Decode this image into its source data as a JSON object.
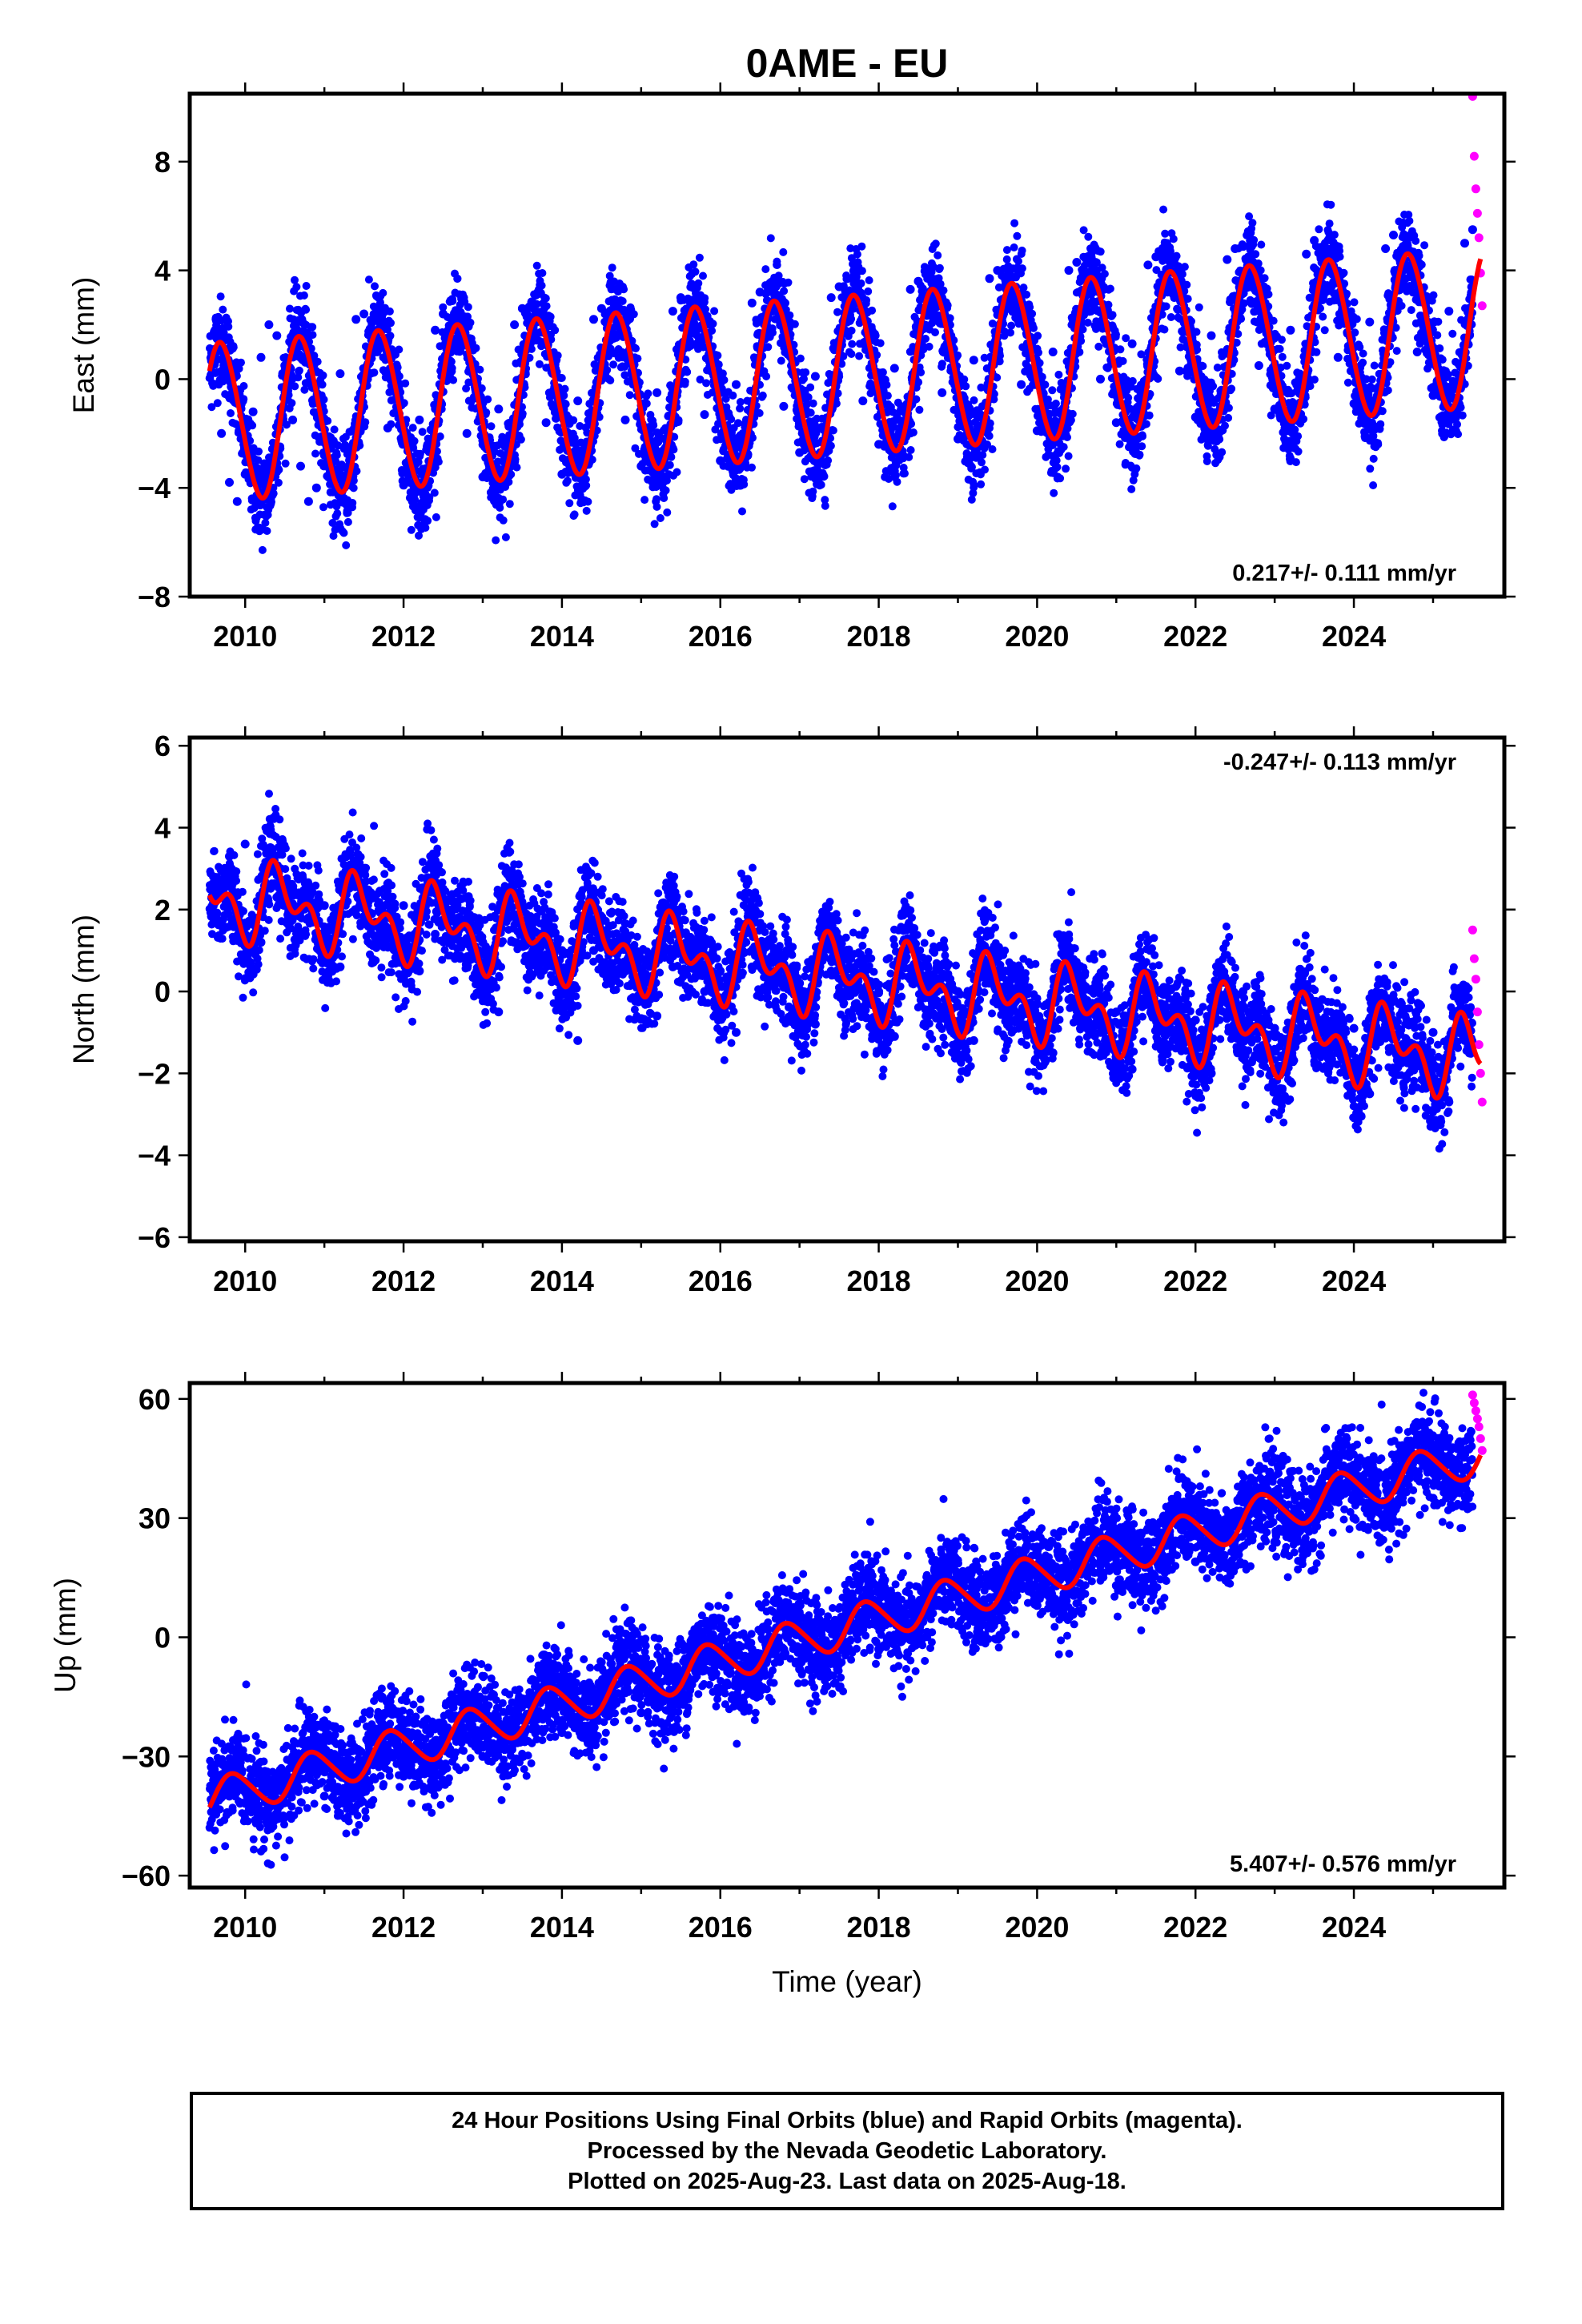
{
  "title": "0AME - EU",
  "colors": {
    "final_orbits": "#0000ff",
    "rapid_orbits": "#ff00ff",
    "model_fit": "#ff0000"
  },
  "chart_data": [
    {
      "type": "scatter",
      "ylabel": "East (mm)",
      "xlabel": "",
      "rate_label": "0.217+/- 0.111 mm/yr",
      "xlim": [
        2009.3,
        2025.9
      ],
      "ylim": [
        -8,
        10.5
      ],
      "x_ticks": [
        2010,
        2012,
        2014,
        2016,
        2018,
        2020,
        2022,
        2024
      ],
      "x_tick_labels": [
        "2010",
        "2012",
        "2014",
        "2016",
        "2018",
        "2020",
        "2022",
        "2024"
      ],
      "y_ticks": [
        -8,
        -4,
        0,
        4,
        8
      ],
      "y_tick_labels": [
        "−8",
        "−4",
        "0",
        "4",
        "8"
      ],
      "series": [
        {
          "x": [
            2009.6,
            2009.7,
            2009.8,
            2009.9,
            2010.0,
            2010.1,
            2010.2,
            2010.3,
            2010.4,
            2010.5,
            2010.6,
            2010.7,
            2010.8,
            2010.9,
            2011.0,
            2011.2,
            2011.4,
            2011.5,
            2011.6,
            2011.8,
            2012.0,
            2012.2,
            2012.4,
            2012.5,
            2012.6,
            2012.8,
            2013.0,
            2013.2,
            2013.4,
            2013.5,
            2013.6,
            2013.8,
            2014.0,
            2014.2,
            2014.4,
            2014.5,
            2014.6,
            2014.8,
            2015.0,
            2015.2,
            2015.4,
            2015.5,
            2015.6,
            2015.8,
            2016.0,
            2016.2,
            2016.4,
            2016.5,
            2016.6,
            2016.8,
            2017.0,
            2017.2,
            2017.4,
            2017.5,
            2017.6,
            2017.8,
            2018.0,
            2018.2,
            2018.4,
            2018.5,
            2018.6,
            2018.8,
            2019.0,
            2019.2,
            2019.4,
            2019.5,
            2019.6,
            2019.8,
            2020.0,
            2020.2,
            2020.4,
            2020.5,
            2020.6,
            2020.8,
            2021.0,
            2021.2,
            2021.4,
            2021.5,
            2021.6,
            2021.8,
            2022.0,
            2022.2,
            2022.4,
            2022.5,
            2022.6,
            2022.8,
            2023.0,
            2023.2,
            2023.4,
            2023.5,
            2023.6,
            2023.8,
            2024.0,
            2024.2,
            2024.4,
            2024.5,
            2024.6,
            2024.8,
            2025.0,
            2025.2,
            2025.4,
            2025.5
          ],
          "y": [
            1.0,
            -2.0,
            -3.8,
            -4.5,
            -3.5,
            -1.2,
            0.8,
            2.0,
            1.6,
            0.5,
            -1.5,
            -3.2,
            -4.5,
            -4.0,
            -2.8,
            0.2,
            2.2,
            2.4,
            1.2,
            -1.8,
            -3.9,
            -1.5,
            1.8,
            2.4,
            1.1,
            -2.0,
            -3.6,
            -1.1,
            2.0,
            2.6,
            1.3,
            -1.6,
            -3.5,
            -0.8,
            2.2,
            2.6,
            1.4,
            -1.5,
            -3.2,
            -0.5,
            2.5,
            3.0,
            1.6,
            -1.3,
            -3.0,
            -0.2,
            2.8,
            3.2,
            1.9,
            -1.0,
            -2.7,
            0.1,
            3.0,
            3.4,
            2.1,
            -0.8,
            -2.4,
            0.4,
            3.3,
            3.6,
            2.4,
            -0.5,
            -2.2,
            0.7,
            3.7,
            4.0,
            2.7,
            -0.2,
            -1.9,
            1.0,
            4.0,
            4.3,
            3.0,
            0.0,
            -1.6,
            1.3,
            4.2,
            4.5,
            3.2,
            0.3,
            -1.4,
            1.6,
            4.4,
            4.8,
            3.5,
            0.5,
            -1.1,
            1.8,
            4.6,
            5.1,
            3.8,
            0.8,
            -0.9,
            2.1,
            4.8,
            5.3,
            4.0,
            1.0,
            -0.6,
            2.5,
            5.0,
            5.5
          ],
          "color": "#0000ff"
        },
        {
          "x": [
            2025.5,
            2025.52,
            2025.54,
            2025.56,
            2025.58,
            2025.6,
            2025.62
          ],
          "y": [
            10.4,
            8.2,
            7.0,
            6.1,
            5.2,
            3.9,
            2.7
          ],
          "color": "#ff00ff"
        }
      ],
      "fit": {
        "rate": 0.217,
        "offset": -1.5,
        "amplitude": 2.9,
        "phase_year": 0.45,
        "semi_amplitude": 0.2
      }
    },
    {
      "type": "scatter",
      "ylabel": "North (mm)",
      "xlabel": "",
      "rate_label": "-0.247+/- 0.113 mm/yr",
      "xlim": [
        2009.3,
        2025.9
      ],
      "ylim": [
        -6.1,
        6.2
      ],
      "x_ticks": [
        2010,
        2012,
        2014,
        2016,
        2018,
        2020,
        2022,
        2024
      ],
      "x_tick_labels": [
        "2010",
        "2012",
        "2014",
        "2016",
        "2018",
        "2020",
        "2022",
        "2024"
      ],
      "y_ticks": [
        -6,
        -4,
        -2,
        0,
        2,
        4,
        6
      ],
      "y_tick_labels": [
        "−6",
        "−4",
        "−2",
        "0",
        "2",
        "4",
        "6"
      ],
      "series": [
        {
          "x": [
            2009.6,
            2009.8,
            2010.0,
            2010.2,
            2010.4,
            2010.6,
            2010.8,
            2011.0,
            2011.2,
            2011.4,
            2011.6,
            2011.8,
            2012.0,
            2012.2,
            2012.4,
            2012.6,
            2012.8,
            2013.0,
            2013.2,
            2013.4,
            2013.6,
            2013.8,
            2014.0,
            2014.2,
            2014.4,
            2014.6,
            2014.8,
            2015.0,
            2015.2,
            2015.4,
            2015.6,
            2015.8,
            2016.0,
            2016.2,
            2016.4,
            2016.6,
            2016.8,
            2017.0,
            2017.2,
            2017.4,
            2017.6,
            2017.8,
            2018.0,
            2018.2,
            2018.4,
            2018.6,
            2018.8,
            2019.0,
            2019.2,
            2019.4,
            2019.6,
            2019.8,
            2020.0,
            2020.2,
            2020.4,
            2020.6,
            2020.8,
            2021.0,
            2021.2,
            2021.4,
            2021.6,
            2021.8,
            2022.0,
            2022.2,
            2022.4,
            2022.6,
            2022.8,
            2023.0,
            2023.2,
            2023.4,
            2023.6,
            2023.8,
            2024.0,
            2024.2,
            2024.4,
            2024.6,
            2024.8,
            2025.0,
            2025.2,
            2025.4
          ],
          "y": [
            2.8,
            3.3,
            3.6,
            1.2,
            2.3,
            2.5,
            1.8,
            2.1,
            0.6,
            2.0,
            1.9,
            1.5,
            2.1,
            0.5,
            1.4,
            1.9,
            1.3,
            1.2,
            -0.5,
            1.2,
            1.7,
            0.9,
            1.0,
            -1.2,
            1.0,
            1.6,
            0.7,
            0.8,
            -0.6,
            0.6,
            1.2,
            0.0,
            0.5,
            -1.0,
            0.6,
            1.2,
            0.1,
            0.2,
            -0.8,
            0.5,
            0.9,
            -0.4,
            0.0,
            -1.1,
            0.3,
            0.7,
            -0.6,
            0.0,
            -1.2,
            0.2,
            0.5,
            -0.8,
            -0.3,
            -1.5,
            -0.2,
            0.4,
            -1.0,
            -0.5,
            -1.9,
            -0.3,
            0.1,
            -1.3,
            -0.7,
            -2.0,
            -0.6,
            0.0,
            -1.5,
            -0.9,
            -2.2,
            -0.6,
            -0.2,
            -1.5,
            -0.9,
            -2.5,
            -0.7,
            -0.3,
            -1.6,
            -1.0,
            -2.7,
            -1.2
          ],
          "color": "#0000ff"
        },
        {
          "x": [
            2025.5,
            2025.52,
            2025.54,
            2025.56,
            2025.58,
            2025.6,
            2025.62
          ],
          "y": [
            1.5,
            0.8,
            0.3,
            -0.5,
            -1.3,
            -2.0,
            -2.7
          ],
          "color": "#ff00ff"
        }
      ],
      "fit": {
        "rate": -0.247,
        "offset": 2.2,
        "amplitude": 0.7,
        "phase_year": 0.2,
        "semi_amplitude": 0.55
      }
    },
    {
      "type": "scatter",
      "ylabel": "Up (mm)",
      "xlabel": "Time (year)",
      "rate_label": "5.407+/- 0.576 mm/yr",
      "xlim": [
        2009.3,
        2025.9
      ],
      "ylim": [
        -63,
        64
      ],
      "x_ticks": [
        2010,
        2012,
        2014,
        2016,
        2018,
        2020,
        2022,
        2024
      ],
      "x_tick_labels": [
        "2010",
        "2012",
        "2014",
        "2016",
        "2018",
        "2020",
        "2022",
        "2024"
      ],
      "y_ticks": [
        -60,
        -30,
        0,
        30,
        60
      ],
      "y_tick_labels": [
        "−60",
        "−30",
        "0",
        "30",
        "60"
      ],
      "series": [
        {
          "x": [
            2009.6,
            2009.8,
            2010.0,
            2010.2,
            2010.4,
            2010.6,
            2010.8,
            2011.0,
            2011.2,
            2011.4,
            2011.6,
            2011.8,
            2012.0,
            2012.2,
            2012.4,
            2012.6,
            2012.8,
            2013.0,
            2013.2,
            2013.4,
            2013.6,
            2013.8,
            2014.0,
            2014.2,
            2014.4,
            2014.6,
            2014.8,
            2015.0,
            2015.2,
            2015.4,
            2015.6,
            2015.8,
            2016.0,
            2016.2,
            2016.4,
            2016.6,
            2016.8,
            2017.0,
            2017.2,
            2017.4,
            2017.6,
            2017.8,
            2018.0,
            2018.2,
            2018.4,
            2018.6,
            2018.8,
            2019.0,
            2019.2,
            2019.4,
            2019.6,
            2019.8,
            2020.0,
            2020.2,
            2020.4,
            2020.6,
            2020.8,
            2021.0,
            2021.2,
            2021.4,
            2021.6,
            2021.8,
            2022.0,
            2022.2,
            2022.4,
            2022.6,
            2022.8,
            2023.0,
            2023.2,
            2023.4,
            2023.6,
            2023.8,
            2024.0,
            2024.2,
            2024.4,
            2024.6,
            2024.8,
            2025.0,
            2025.2,
            2025.4
          ],
          "y": [
            -36,
            -40,
            -46,
            -44,
            -35,
            -30,
            -35,
            -40,
            -41,
            -33,
            -25,
            -30,
            -35,
            -34,
            -26,
            -20,
            -25,
            -30,
            -28,
            -19,
            -14,
            -19,
            -24,
            -23,
            -14,
            -9,
            -14,
            -19,
            -17,
            -8,
            -3,
            -8,
            -13,
            -12,
            -3,
            2,
            -3,
            -8,
            -6,
            3,
            7,
            2,
            -3,
            -1,
            8,
            13,
            8,
            3,
            4,
            13,
            18,
            13,
            8,
            9,
            18,
            23,
            18,
            13,
            14,
            23,
            29,
            24,
            19,
            20,
            29,
            34,
            29,
            24,
            25,
            34,
            40,
            35,
            30,
            31,
            40,
            45,
            40,
            35,
            37,
            46
          ],
          "color": "#0000ff"
        },
        {
          "x": [
            2025.5,
            2025.52,
            2025.54,
            2025.56,
            2025.58,
            2025.6,
            2025.62
          ],
          "y": [
            61,
            59,
            57,
            55,
            53,
            50,
            47
          ],
          "color": "#ff00ff"
        }
      ],
      "fit": {
        "rate": 5.407,
        "offset": -38.5,
        "amplitude": 5.0,
        "phase_year": 0.6,
        "semi_amplitude": 0.6
      }
    }
  ],
  "footer": {
    "line1": "24 Hour Positions Using Final Orbits (blue) and Rapid Orbits (magenta).",
    "line2": "Processed by the Nevada Geodetic Laboratory.",
    "line3": "Plotted on 2025-Aug-23. Last data on 2025-Aug-18."
  }
}
